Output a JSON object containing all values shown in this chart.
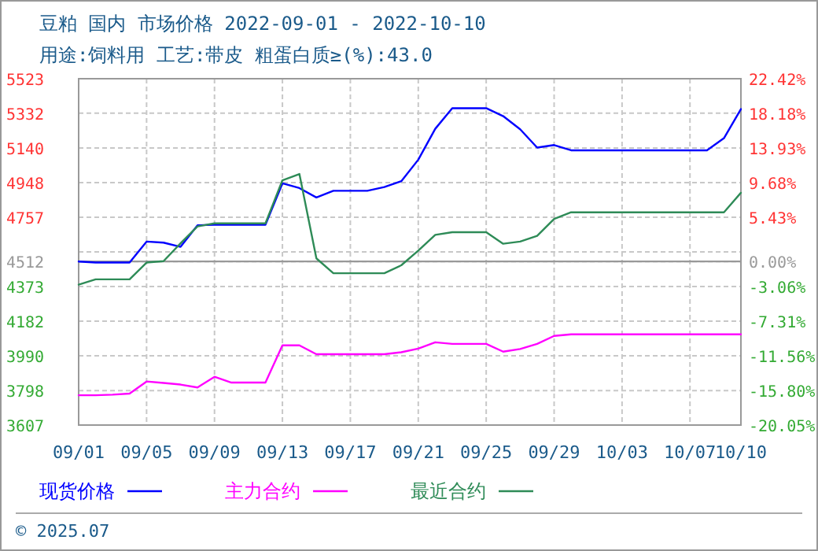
{
  "chart_data": {
    "type": "line",
    "title": "豆粕 国内 市场价格 2022-09-01 - 2022-10-10",
    "subtitle": "用途:饲料用 工艺:带皮 粗蛋白质≥(%):43.0",
    "x": [
      "2022-09-01",
      "2022-09-02",
      "2022-09-03",
      "2022-09-04",
      "2022-09-05",
      "2022-09-06",
      "2022-09-07",
      "2022-09-08",
      "2022-09-09",
      "2022-09-10",
      "2022-09-11",
      "2022-09-12",
      "2022-09-13",
      "2022-09-14",
      "2022-09-15",
      "2022-09-16",
      "2022-09-17",
      "2022-09-18",
      "2022-09-19",
      "2022-09-20",
      "2022-09-21",
      "2022-09-22",
      "2022-09-23",
      "2022-09-24",
      "2022-09-25",
      "2022-09-26",
      "2022-09-27",
      "2022-09-28",
      "2022-09-29",
      "2022-09-30",
      "2022-10-01",
      "2022-10-02",
      "2022-10-03",
      "2022-10-04",
      "2022-10-05",
      "2022-10-06",
      "2022-10-07",
      "2022-10-08",
      "2022-10-09",
      "2022-10-10"
    ],
    "series": [
      {
        "name": "现货价格",
        "color": "#0000ff",
        "values": [
          4512,
          4506,
          4506,
          4506,
          4622,
          4616,
          4593,
          4712,
          4715,
          4715,
          4715,
          4715,
          4944,
          4918,
          4866,
          4903,
          4903,
          4903,
          4924,
          4956,
          5075,
          5246,
          5360,
          5360,
          5360,
          5316,
          5243,
          5142,
          5156,
          5127,
          5127,
          5127,
          5127,
          5127,
          5127,
          5127,
          5127,
          5127,
          5194,
          5355
        ]
      },
      {
        "name": "主力合约",
        "color": "#ff00ff",
        "values": [
          3772,
          3772,
          3775,
          3781,
          3848,
          3840,
          3831,
          3815,
          3874,
          3842,
          3842,
          3842,
          4048,
          4048,
          3999,
          3999,
          3999,
          3999,
          3999,
          4010,
          4030,
          4065,
          4056,
          4056,
          4056,
          4013,
          4028,
          4056,
          4100,
          4109,
          4109,
          4109,
          4109,
          4109,
          4109,
          4109,
          4109,
          4109,
          4109,
          4109
        ]
      },
      {
        "name": "最近合约",
        "color": "#2e8b57",
        "values": [
          4384,
          4413,
          4413,
          4413,
          4506,
          4514,
          4612,
          4706,
          4723,
          4723,
          4723,
          4723,
          4961,
          4996,
          4529,
          4447,
          4447,
          4447,
          4447,
          4491,
          4572,
          4659,
          4674,
          4674,
          4674,
          4610,
          4622,
          4654,
          4747,
          4784,
          4784,
          4784,
          4784,
          4784,
          4784,
          4784,
          4784,
          4784,
          4784,
          4892
        ]
      }
    ],
    "xlim": [
      "2022-09-01",
      "2022-10-10"
    ],
    "xticks": [
      {
        "value": "2022-09-01",
        "label": "09/01"
      },
      {
        "value": "2022-09-05",
        "label": "09/05"
      },
      {
        "value": "2022-09-09",
        "label": "09/09"
      },
      {
        "value": "2022-09-13",
        "label": "09/13"
      },
      {
        "value": "2022-09-17",
        "label": "09/17"
      },
      {
        "value": "2022-09-21",
        "label": "09/21"
      },
      {
        "value": "2022-09-25",
        "label": "09/25"
      },
      {
        "value": "2022-09-29",
        "label": "09/29"
      },
      {
        "value": "2022-10-03",
        "label": "10/03"
      },
      {
        "value": "2022-10-07",
        "label": "10/07"
      },
      {
        "value": "2022-10-10",
        "label": "10/10"
      }
    ],
    "ylim": [
      3607,
      5523
    ],
    "yticks": [
      3607,
      3798,
      3990,
      4182,
      4373,
      4512,
      {
        "value": 4565,
        "label": null
      },
      4757,
      4948,
      5140,
      5332,
      5523
    ],
    "y2lim": [
      -20.05,
      22.42
    ],
    "y2ticks": [
      {
        "value": -20.05,
        "label": "-20.05%"
      },
      {
        "value": -15.8,
        "label": "-15.80%"
      },
      {
        "value": -11.56,
        "label": "-11.56%"
      },
      {
        "value": -7.31,
        "label": "-7.31%"
      },
      {
        "value": -3.06,
        "label": "-3.06%"
      },
      {
        "value": 0,
        "label": "0.00%"
      },
      {
        "value": 5.43,
        "label": "5.43%"
      },
      {
        "value": 9.68,
        "label": "9.68%"
      },
      {
        "value": 13.93,
        "label": "13.93%"
      },
      {
        "value": 18.18,
        "label": "18.18%"
      },
      {
        "value": 22.42,
        "label": "22.42%"
      }
    ],
    "ref_lines": [
      {
        "axis": "y",
        "value": 4512,
        "label": null,
        "color": "#999999"
      }
    ],
    "grid": true,
    "legend": "bottom",
    "marker": "none",
    "line_style": "solid",
    "annotations": [
      "© 2025.07"
    ]
  }
}
